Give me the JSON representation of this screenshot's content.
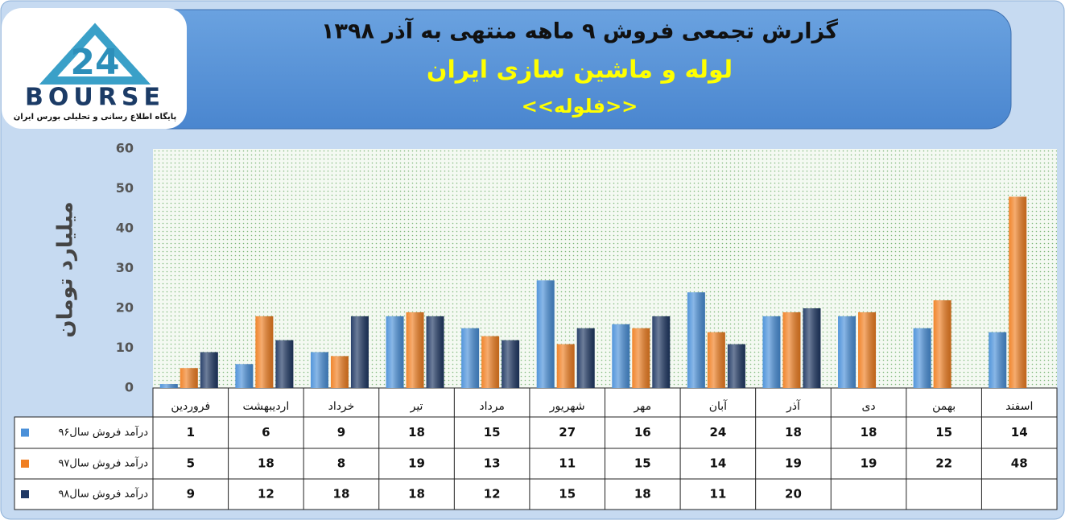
{
  "logo": {
    "number": "24",
    "name": "BOURSE",
    "tagline": "پایگاه اطلاع رسانی و تحلیلی بورس ایران"
  },
  "chart_data": {
    "type": "bar",
    "title": "گزارش تجمعی فروش ۹ ماهه منتهی به آذر ۱۳۹۸",
    "subtitle": "لوله و ماشین سازی ایران",
    "symbol": "<<فلوله>>",
    "y_label": "میلیارد تومان",
    "categories": [
      "فروردین",
      "اردیبهشت",
      "خرداد",
      "تیر",
      "مرداد",
      "شهریور",
      "مهر",
      "آبان",
      "آذر",
      "دی",
      "بهمن",
      "اسفند"
    ],
    "series": [
      {
        "name": "درآمد فروش سال۹۶",
        "color": "#4a90d9",
        "values": [
          1,
          6,
          9,
          18,
          15,
          27,
          16,
          24,
          18,
          18,
          15,
          14
        ]
      },
      {
        "name": "درآمد فروش سال۹۷",
        "color": "#f07f22",
        "values": [
          5,
          18,
          8,
          19,
          13,
          11,
          15,
          14,
          19,
          19,
          22,
          48
        ]
      },
      {
        "name": "درآمد فروش سال۹۸",
        "color": "#1f3864",
        "values": [
          9,
          12,
          18,
          18,
          12,
          15,
          18,
          11,
          20,
          null,
          null,
          null
        ]
      }
    ],
    "ylim": [
      0,
      60
    ],
    "yticks": [
      0,
      10,
      20,
      30,
      40,
      50,
      60
    ],
    "grid": false
  }
}
